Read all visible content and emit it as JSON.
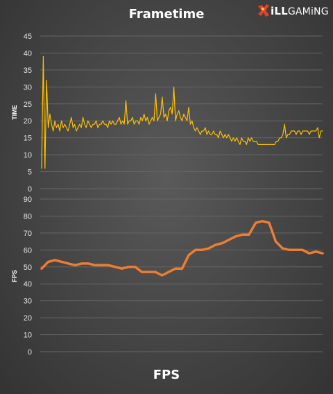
{
  "page": {
    "title": "Frametime",
    "bottom_title": "FPS",
    "logo": {
      "prefix": "iLL",
      "suffix": "GAMiNG"
    }
  },
  "colors": {
    "frametime_line": "#ffc000",
    "fps_line": "#ed7d31",
    "gridline": "#666666",
    "text": "#ffffff"
  },
  "chart_data": [
    {
      "type": "line",
      "title": "Frametime",
      "xlabel": "",
      "ylabel": "TIME",
      "ylim": [
        0,
        45
      ],
      "yticks": [
        0,
        5,
        10,
        15,
        20,
        25,
        30,
        35,
        40,
        45
      ],
      "grid": true,
      "series": [
        {
          "values": [
            6,
            39,
            6,
            32,
            18,
            22,
            19,
            17,
            20,
            18,
            19,
            17,
            20,
            18,
            19,
            18,
            17,
            19,
            21,
            18,
            19,
            17,
            18,
            19,
            18,
            21,
            19,
            18,
            20,
            19,
            18,
            19,
            19,
            20,
            18,
            19,
            19,
            20,
            19,
            19,
            18,
            20,
            19,
            20,
            19,
            19,
            20,
            21,
            19,
            20,
            19,
            26,
            19,
            20,
            20,
            21,
            19,
            20,
            20,
            19,
            21,
            20,
            22,
            20,
            21,
            19,
            20,
            21,
            20,
            28,
            20,
            21,
            22,
            27,
            21,
            22,
            20,
            23,
            24,
            22,
            30,
            20,
            22,
            23,
            21,
            20,
            22,
            21,
            20,
            24,
            19,
            20,
            18,
            17,
            18,
            17,
            16,
            17,
            17,
            18,
            16,
            17,
            16,
            16,
            17,
            16,
            16,
            15,
            17,
            16,
            15,
            16,
            15,
            16,
            15,
            14,
            15,
            14,
            15,
            14,
            13,
            15,
            14,
            14,
            13,
            15,
            14,
            15,
            14,
            14,
            14,
            13,
            13,
            13,
            13,
            13,
            13,
            13,
            13,
            13,
            13,
            13,
            14,
            14,
            15,
            15,
            16,
            19,
            15,
            16,
            16,
            17,
            17,
            17,
            16,
            17,
            17,
            16,
            17,
            17,
            17,
            17,
            16,
            17,
            17,
            17,
            17,
            18,
            15,
            17,
            17
          ]
        }
      ]
    },
    {
      "type": "line",
      "title": "FPS",
      "xlabel": "",
      "ylabel": "FPS",
      "ylim": [
        0,
        90
      ],
      "yticks": [
        0,
        10,
        20,
        30,
        40,
        50,
        60,
        70,
        80,
        90
      ],
      "grid": true,
      "series": [
        {
          "values": [
            49,
            53,
            54,
            53,
            52,
            51,
            52,
            52,
            51,
            51,
            51,
            50,
            49,
            50,
            50,
            47,
            47,
            47,
            45,
            47,
            49,
            49,
            57,
            60,
            60,
            61,
            63,
            64,
            66,
            68,
            69,
            69,
            76,
            77,
            76,
            65,
            61,
            60,
            60,
            60,
            58,
            59,
            58
          ]
        }
      ]
    }
  ]
}
